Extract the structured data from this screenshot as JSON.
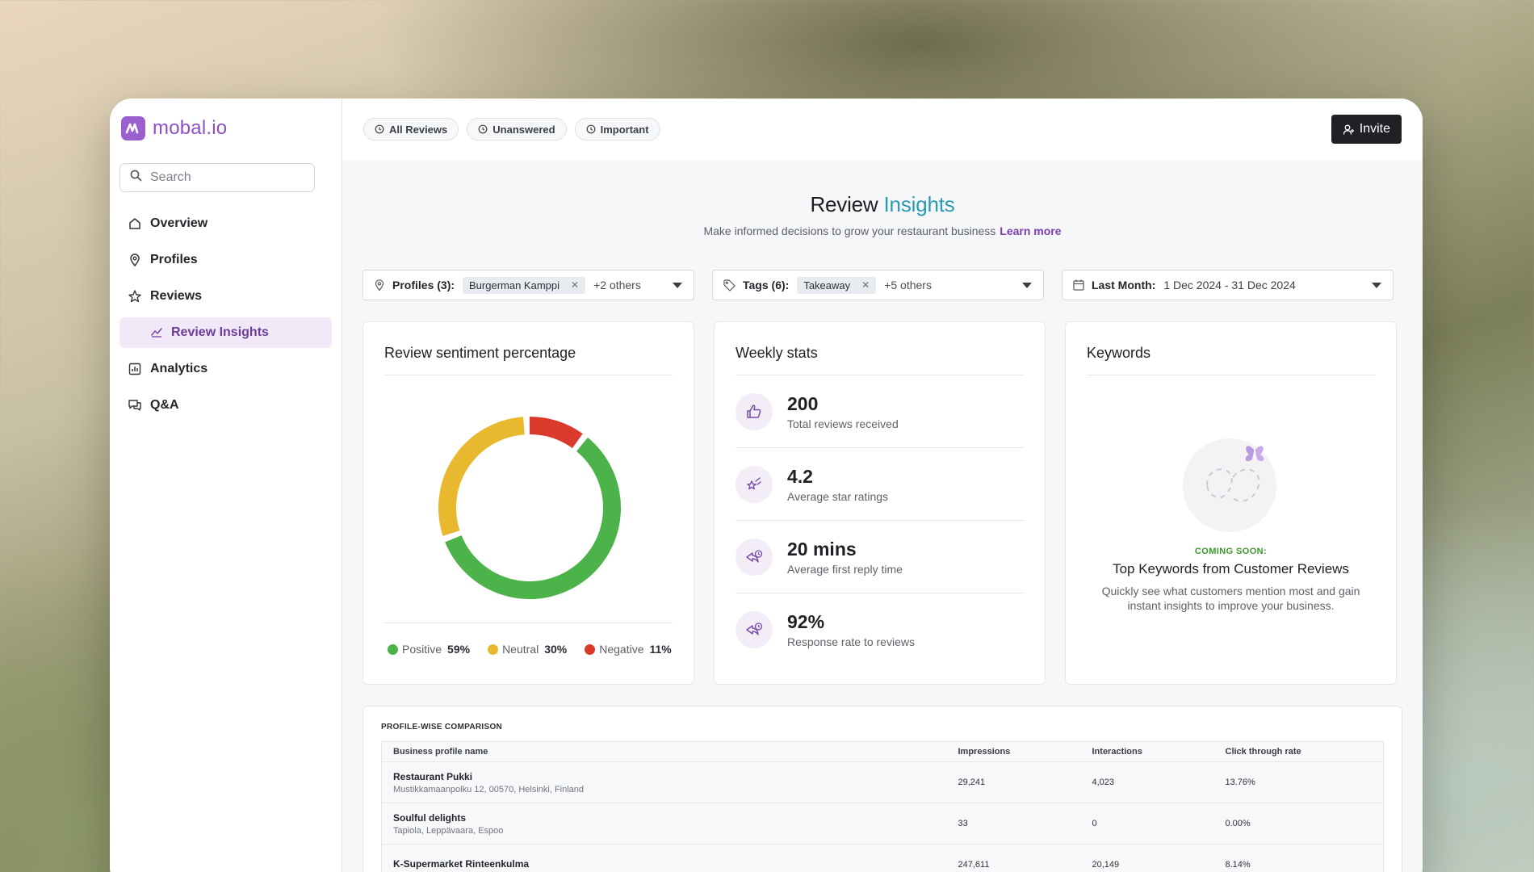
{
  "brand": {
    "name": "mobal.io",
    "color": "#9b5fcf"
  },
  "search": {
    "placeholder": "Search"
  },
  "sidebar": {
    "items": [
      {
        "label": "Overview",
        "icon": "home-icon"
      },
      {
        "label": "Profiles",
        "icon": "location-pin-icon"
      },
      {
        "label": "Reviews",
        "icon": "star-icon"
      },
      {
        "label": "Review Insights",
        "icon": "insights-chart-icon",
        "active": true
      },
      {
        "label": "Analytics",
        "icon": "bar-chart-icon"
      },
      {
        "label": "Q&A",
        "icon": "chat-bubbles-icon"
      }
    ]
  },
  "tabs": [
    {
      "label": "All Reviews"
    },
    {
      "label": "Unanswered"
    },
    {
      "label": "Important"
    }
  ],
  "invite": {
    "label": "Invite"
  },
  "page": {
    "title_main": "Review",
    "title_accent": "Insights",
    "subtitle": "Make informed decisions to grow your restaurant business",
    "learn_more": "Learn more"
  },
  "filters": {
    "profiles": {
      "label": "Profiles (3):",
      "chip": "Burgerman Kamppi",
      "others": "+2 others"
    },
    "tags": {
      "label": "Tags (6):",
      "chip": "Takeaway",
      "others": "+5 others"
    },
    "date": {
      "label": "Last Month:",
      "value": "1 Dec 2024 - 31 Dec 2024"
    }
  },
  "sentiment": {
    "title": "Review sentiment percentage",
    "legend": [
      {
        "name": "Positive",
        "value": "59%",
        "color": "#4cb34a"
      },
      {
        "name": "Neutral",
        "value": "30%",
        "color": "#e8b92f"
      },
      {
        "name": "Negative",
        "value": "11%",
        "color": "#d93a2b"
      }
    ]
  },
  "chart_data": {
    "type": "pie",
    "title": "Review sentiment percentage",
    "categories": [
      "Positive",
      "Neutral",
      "Negative"
    ],
    "values": [
      59,
      30,
      11
    ],
    "colors": [
      "#4cb34a",
      "#e8b92f",
      "#d93a2b"
    ],
    "legend": "bottom"
  },
  "weekly": {
    "title": "Weekly stats",
    "stats": [
      {
        "value": "200",
        "label": "Total reviews received",
        "icon": "thumbs-up-icon"
      },
      {
        "value": "4.2",
        "label": "Average star ratings",
        "icon": "shooting-star-icon"
      },
      {
        "value": "20 mins",
        "label": "Average first reply time",
        "icon": "reply-clock-icon"
      },
      {
        "value": "92%",
        "label": "Response rate to reviews",
        "icon": "reply-clock-icon"
      }
    ]
  },
  "keywords": {
    "title": "Keywords",
    "coming_soon": "COMING SOON:",
    "heading": "Top Keywords from Customer Reviews",
    "description": "Quickly see what customers mention most and gain instant insights to improve your business."
  },
  "comparison": {
    "title": "PROFILE-WISE COMPARISON",
    "columns": [
      "Business profile name",
      "Impressions",
      "Interactions",
      "Click through rate"
    ],
    "rows": [
      {
        "name": "Restaurant Pukki",
        "address": "Mustikkamaanpolku 12, 00570, Helsinki, Finland",
        "impressions": "29,241",
        "interactions": "4,023",
        "ctr": "13.76%"
      },
      {
        "name": "Soulful delights",
        "address": "Tapiola, Leppävaara, Espoo",
        "impressions": "33",
        "interactions": "0",
        "ctr": "0.00%"
      },
      {
        "name": "K-Supermarket Rinteenkulma",
        "address": "",
        "impressions": "247,611",
        "interactions": "20,149",
        "ctr": "8.14%"
      }
    ]
  }
}
